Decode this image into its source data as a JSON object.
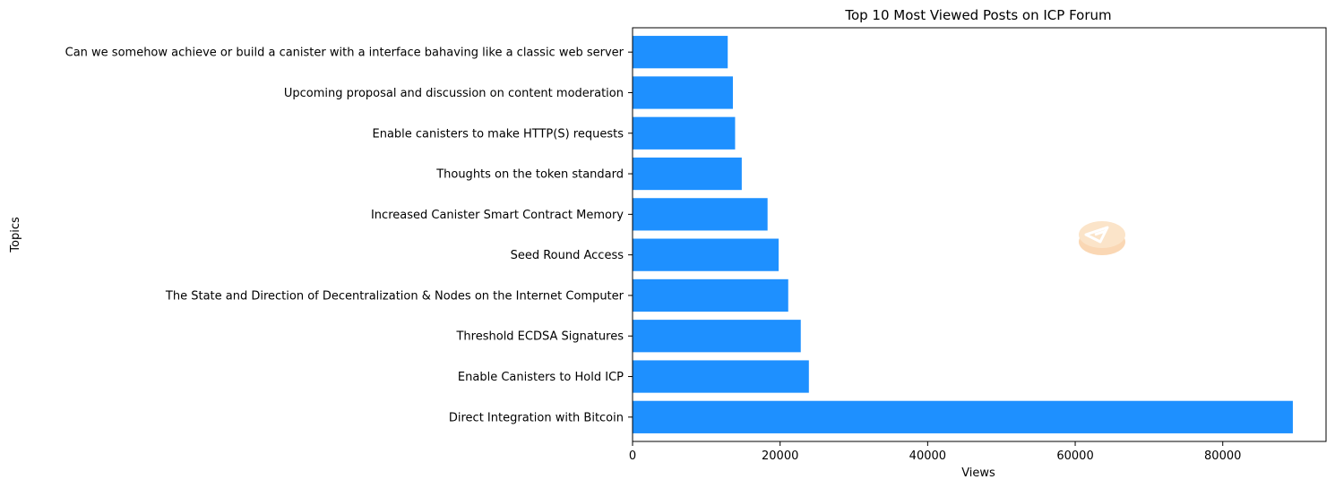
{
  "chart_data": {
    "type": "bar",
    "orientation": "horizontal",
    "title": "Top 10 Most Viewed Posts on ICP Forum",
    "xlabel": "Views",
    "ylabel": "Topics",
    "xlim": [
      0,
      94000
    ],
    "xticks": [
      0,
      20000,
      40000,
      60000,
      80000
    ],
    "grid": false,
    "bar_color": "#1e90ff",
    "watermark": "icp-coin-logo",
    "categories": [
      "Direct Integration with Bitcoin",
      "Enable Canisters to Hold ICP",
      "Threshold ECDSA Signatures",
      "The State and Direction of Decentralization & Nodes on the Internet Computer",
      "Seed Round Access",
      "Increased Canister Smart Contract Memory",
      "Thoughts on the token standard",
      "Enable canisters to make HTTP(S) requests",
      "Upcoming proposal and discussion on content moderation",
      "Can we somehow achieve or build a canister with a interface bahaving like a classic web server"
    ],
    "values": [
      89500,
      23900,
      22800,
      21100,
      19800,
      18300,
      14800,
      13900,
      13600,
      12900
    ]
  }
}
